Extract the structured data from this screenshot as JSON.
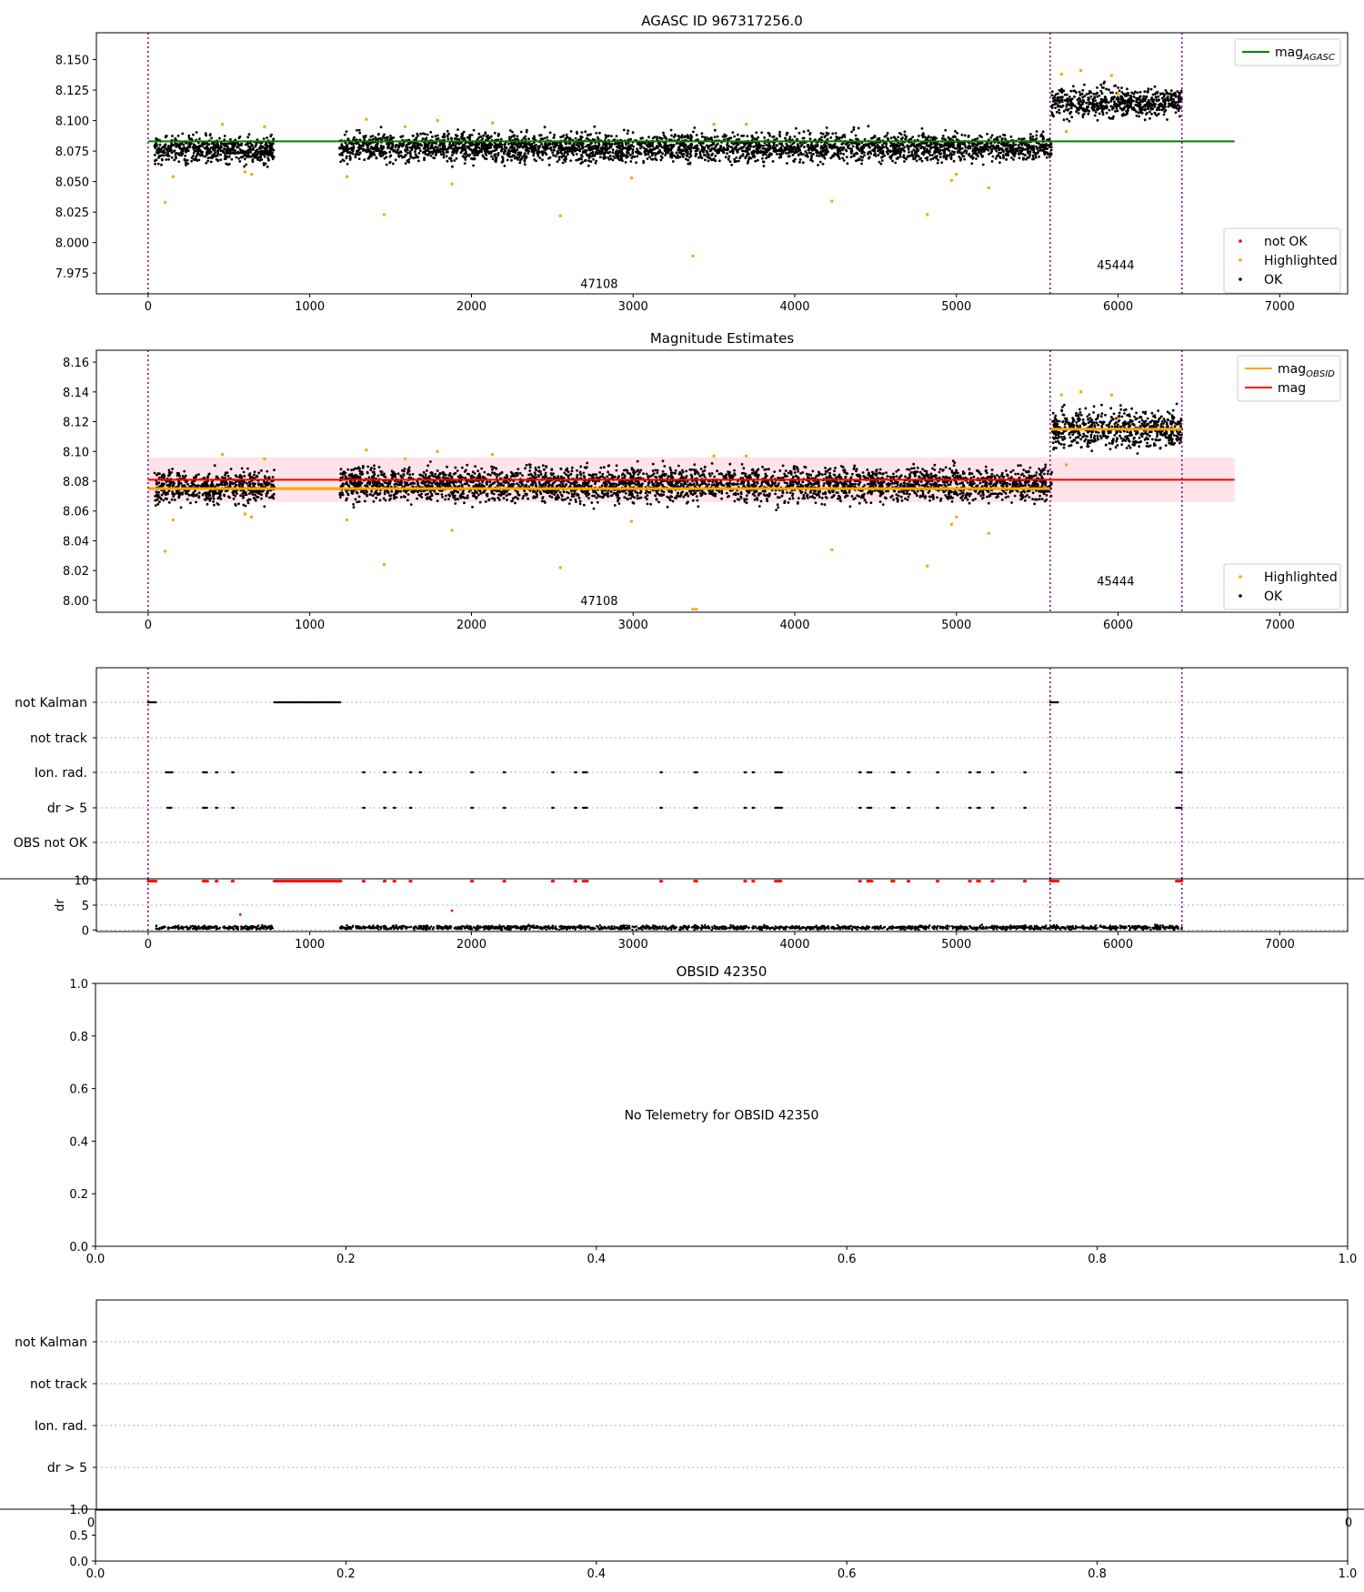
{
  "colors": {
    "ok": "#000000",
    "highlighted": "#ffa500",
    "not_ok": "#ff0000",
    "mag_agasc": "#008000",
    "mag_obsid": "#ffa500",
    "mag": "#ff0000",
    "mag_band": "#ffc0cb",
    "obs_boundary": "#800080",
    "grid": "#b0b0b0"
  },
  "chart_data": [
    {
      "type": "scatter",
      "title": "AGASC ID 967317256.0",
      "xlim": [
        -320,
        7420
      ],
      "ylim": [
        7.958,
        8.172
      ],
      "xticks": [
        0,
        1000,
        2000,
        3000,
        4000,
        5000,
        6000,
        7000
      ],
      "xtick_labels": [
        "0",
        "1000",
        "2000",
        "3000",
        "4000",
        "5000",
        "6000",
        "7000"
      ],
      "yticks": [
        7.975,
        8.0,
        8.025,
        8.05,
        8.075,
        8.1,
        8.125,
        8.15
      ],
      "ytick_labels": [
        "7.975",
        "8.000",
        "8.025",
        "8.050",
        "8.075",
        "8.100",
        "8.125",
        "8.150"
      ],
      "obs_boundaries": [
        0,
        5580,
        6395
      ],
      "obsid_labels": [
        {
          "text": "47108",
          "x": 2790,
          "y": 7.963
        },
        {
          "text": "45444",
          "x": 5985,
          "y": 7.978
        }
      ],
      "lines": [
        {
          "name": "mag_AGASC",
          "label": "mag",
          "sub": "AGASC",
          "x": [
            0,
            6720
          ],
          "y": [
            8.083,
            8.083
          ]
        }
      ],
      "segments": [
        {
          "x_range": [
            40,
            780
          ],
          "mean": 8.076,
          "sd": 0.0055
        },
        {
          "x_range": [
            1185,
            5590
          ],
          "mean": 8.078,
          "sd": 0.0058
        },
        {
          "x_range": [
            5590,
            6395
          ],
          "mean": 8.115,
          "sd": 0.006
        }
      ],
      "highlighted": [
        [
          105,
          8.033
        ],
        [
          155,
          8.054
        ],
        [
          460,
          8.097
        ],
        [
          600,
          8.058
        ],
        [
          640,
          8.056
        ],
        [
          720,
          8.095
        ],
        [
          1230,
          8.054
        ],
        [
          1350,
          8.101
        ],
        [
          1460,
          8.023
        ],
        [
          1590,
          8.095
        ],
        [
          1790,
          8.1
        ],
        [
          1880,
          8.048
        ],
        [
          2130,
          8.098
        ],
        [
          2550,
          8.022
        ],
        [
          2990,
          8.053
        ],
        [
          3370,
          7.989
        ],
        [
          3500,
          8.097
        ],
        [
          3700,
          8.097
        ],
        [
          4230,
          8.034
        ],
        [
          4820,
          8.023
        ],
        [
          4970,
          8.051
        ],
        [
          5000,
          8.056
        ],
        [
          5200,
          8.045
        ],
        [
          5650,
          8.138
        ],
        [
          5680,
          8.091
        ],
        [
          5770,
          8.141
        ],
        [
          5960,
          8.137
        ],
        [
          6000,
          8.122
        ]
      ],
      "legends": [
        {
          "position": "upper-right",
          "entries": [
            {
              "label": "mag",
              "sub": "AGASC",
              "kind": "line",
              "color": "#008000"
            }
          ]
        },
        {
          "position": "lower-right",
          "entries": [
            {
              "label": "not OK",
              "kind": "dot",
              "color": "#ff0000"
            },
            {
              "label": "Highlighted",
              "kind": "dot",
              "color": "#ffa500"
            },
            {
              "label": "OK",
              "kind": "dot",
              "color": "#000000"
            }
          ]
        }
      ]
    },
    {
      "type": "scatter",
      "title": "Magnitude Estimates",
      "xlim": [
        -320,
        7420
      ],
      "ylim": [
        7.992,
        8.168
      ],
      "xticks": [
        0,
        1000,
        2000,
        3000,
        4000,
        5000,
        6000,
        7000
      ],
      "xtick_labels": [
        "0",
        "1000",
        "2000",
        "3000",
        "4000",
        "5000",
        "6000",
        "7000"
      ],
      "yticks": [
        8.0,
        8.02,
        8.04,
        8.06,
        8.08,
        8.1,
        8.12,
        8.14,
        8.16
      ],
      "ytick_labels": [
        "8.00",
        "8.02",
        "8.04",
        "8.06",
        "8.08",
        "8.10",
        "8.12",
        "8.14",
        "8.16"
      ],
      "obs_boundaries": [
        0,
        5580,
        6395
      ],
      "obsid_labels": [
        {
          "text": "47108",
          "x": 2790,
          "y": 7.997
        },
        {
          "text": "45444",
          "x": 5985,
          "y": 8.01
        }
      ],
      "band": {
        "x": [
          0,
          6720
        ],
        "y": [
          8.066,
          8.096
        ]
      },
      "lines": [
        {
          "name": "mag",
          "label": "mag",
          "x": [
            0,
            6720
          ],
          "y": [
            8.081,
            8.081
          ]
        },
        {
          "name": "mag_OBSID_1",
          "label": "mag",
          "sub": "OBSID",
          "x": [
            0,
            5580
          ],
          "y": [
            8.075,
            8.075
          ]
        },
        {
          "name": "mag_OBSID_2",
          "label": "mag",
          "sub": "OBSID",
          "x": [
            5580,
            6395
          ],
          "y": [
            8.115,
            8.115
          ]
        }
      ],
      "segments": [
        {
          "x_range": [
            40,
            780
          ],
          "mean": 8.076,
          "sd": 0.0055
        },
        {
          "x_range": [
            1185,
            5590
          ],
          "mean": 8.078,
          "sd": 0.0058
        },
        {
          "x_range": [
            5590,
            6395
          ],
          "mean": 8.115,
          "sd": 0.006
        }
      ],
      "highlighted": [
        [
          105,
          8.033
        ],
        [
          155,
          8.054
        ],
        [
          460,
          8.098
        ],
        [
          600,
          8.058
        ],
        [
          640,
          8.056
        ],
        [
          720,
          8.095
        ],
        [
          1230,
          8.054
        ],
        [
          1350,
          8.101
        ],
        [
          1460,
          8.024
        ],
        [
          1590,
          8.095
        ],
        [
          1790,
          8.1
        ],
        [
          1880,
          8.047
        ],
        [
          2130,
          8.098
        ],
        [
          2550,
          8.022
        ],
        [
          2990,
          8.053
        ],
        [
          3370,
          7.994
        ],
        [
          3390,
          7.994
        ],
        [
          3500,
          8.097
        ],
        [
          3700,
          8.097
        ],
        [
          4230,
          8.034
        ],
        [
          4820,
          8.023
        ],
        [
          4970,
          8.051
        ],
        [
          5000,
          8.056
        ],
        [
          5200,
          8.045
        ],
        [
          5650,
          8.138
        ],
        [
          5680,
          8.091
        ],
        [
          5770,
          8.14
        ],
        [
          5960,
          8.138
        ],
        [
          6000,
          8.122
        ]
      ],
      "legends": [
        {
          "position": "upper-right",
          "entries": [
            {
              "label": "mag",
              "sub": "OBSID",
              "kind": "line",
              "color": "#ffa500"
            },
            {
              "label": "mag",
              "kind": "line",
              "color": "#ff0000"
            }
          ]
        },
        {
          "position": "lower-right",
          "entries": [
            {
              "label": "Highlighted",
              "kind": "dot",
              "color": "#ffa500"
            },
            {
              "label": "OK",
              "kind": "dot",
              "color": "#000000"
            }
          ]
        }
      ]
    },
    {
      "type": "scatter",
      "title": "",
      "xlim": [
        -320,
        7420
      ],
      "categories": [
        "not Kalman",
        "not track",
        "Ion. rad.",
        "dr > 5",
        "OBS not OK"
      ],
      "flag_ranges": {
        "not Kalman": [
          [
            0,
            50
          ],
          [
            780,
            1195
          ],
          [
            5580,
            5630
          ]
        ],
        "not track": [],
        "Ion. rad.": [
          [
            110,
            150
          ],
          [
            340,
            370
          ],
          [
            420,
            430
          ],
          [
            520,
            530
          ],
          [
            1330,
            1340
          ],
          [
            1460,
            1470
          ],
          [
            1520,
            1530
          ],
          [
            1620,
            1630
          ],
          [
            1680,
            1690
          ],
          [
            2000,
            2010
          ],
          [
            2200,
            2210
          ],
          [
            2500,
            2510
          ],
          [
            2640,
            2650
          ],
          [
            2690,
            2720
          ],
          [
            3170,
            3180
          ],
          [
            3380,
            3400
          ],
          [
            3690,
            3700
          ],
          [
            3740,
            3750
          ],
          [
            3880,
            3920
          ],
          [
            4400,
            4410
          ],
          [
            4450,
            4480
          ],
          [
            4600,
            4620
          ],
          [
            4700,
            4710
          ],
          [
            4880,
            4890
          ],
          [
            5080,
            5090
          ],
          [
            5130,
            5150
          ],
          [
            5220,
            5230
          ],
          [
            5420,
            5430
          ],
          [
            6360,
            6395
          ]
        ],
        "dr > 5": [
          [
            120,
            150
          ],
          [
            340,
            370
          ],
          [
            420,
            430
          ],
          [
            520,
            530
          ],
          [
            1330,
            1340
          ],
          [
            1460,
            1470
          ],
          [
            1520,
            1530
          ],
          [
            1620,
            1630
          ],
          [
            2000,
            2010
          ],
          [
            2200,
            2210
          ],
          [
            2500,
            2510
          ],
          [
            2640,
            2650
          ],
          [
            2690,
            2720
          ],
          [
            3170,
            3180
          ],
          [
            3380,
            3400
          ],
          [
            3690,
            3700
          ],
          [
            3740,
            3750
          ],
          [
            3880,
            3920
          ],
          [
            4400,
            4410
          ],
          [
            4450,
            4480
          ],
          [
            4600,
            4620
          ],
          [
            4700,
            4710
          ],
          [
            4880,
            4890
          ],
          [
            5080,
            5090
          ],
          [
            5130,
            5150
          ],
          [
            5220,
            5230
          ],
          [
            5420,
            5430
          ],
          [
            6360,
            6395
          ]
        ],
        "OBS not OK": []
      },
      "obs_boundaries": [
        0,
        5580,
        6395
      ]
    },
    {
      "type": "scatter",
      "title": "",
      "xlim": [
        -320,
        7420
      ],
      "ylim": [
        -0.3,
        10.3
      ],
      "ylabel": "dr",
      "yticks": [
        0,
        5,
        10
      ],
      "ytick_labels": [
        "0",
        "5",
        "10"
      ],
      "xticks": [
        0,
        1000,
        2000,
        3000,
        4000,
        5000,
        6000,
        7000
      ],
      "xtick_labels": [
        "0",
        "1000",
        "2000",
        "3000",
        "4000",
        "5000",
        "6000",
        "7000"
      ],
      "segments": [
        {
          "x_range": [
            40,
            780
          ],
          "mean": 0.5,
          "sd": 0.2
        },
        {
          "x_range": [
            1185,
            5590
          ],
          "mean": 0.5,
          "sd": 0.2
        },
        {
          "x_range": [
            5590,
            6395
          ],
          "mean": 0.5,
          "sd": 0.2
        }
      ],
      "red_points": [
        [
          570,
          3.1
        ],
        [
          1880,
          3.9
        ]
      ],
      "red_at_10_ranges": [
        [
          0,
          50
        ],
        [
          340,
          370
        ],
        [
          420,
          430
        ],
        [
          520,
          530
        ],
        [
          780,
          1195
        ],
        [
          1330,
          1340
        ],
        [
          1460,
          1470
        ],
        [
          1520,
          1530
        ],
        [
          1620,
          1630
        ],
        [
          2000,
          2010
        ],
        [
          2200,
          2210
        ],
        [
          2500,
          2510
        ],
        [
          2640,
          2650
        ],
        [
          2690,
          2720
        ],
        [
          3170,
          3180
        ],
        [
          3380,
          3400
        ],
        [
          3690,
          3700
        ],
        [
          3740,
          3750
        ],
        [
          3880,
          3920
        ],
        [
          4400,
          4410
        ],
        [
          4450,
          4480
        ],
        [
          4600,
          4620
        ],
        [
          4700,
          4710
        ],
        [
          4880,
          4890
        ],
        [
          5080,
          5090
        ],
        [
          5130,
          5150
        ],
        [
          5220,
          5230
        ],
        [
          5420,
          5430
        ],
        [
          5580,
          5630
        ],
        [
          6360,
          6395
        ]
      ],
      "obs_boundaries": [
        0,
        5580,
        6395
      ]
    },
    {
      "type": "scatter",
      "title": "OBSID 42350",
      "xlim": [
        0,
        1
      ],
      "ylim": [
        0,
        1
      ],
      "xticks": [
        0,
        0.2,
        0.4,
        0.6,
        0.8,
        1.0
      ],
      "xtick_labels": [
        "0.0",
        "0.2",
        "0.4",
        "0.6",
        "0.8",
        "1.0"
      ],
      "yticks": [
        0,
        0.2,
        0.4,
        0.6,
        0.8,
        1.0
      ],
      "ytick_labels": [
        "0.0",
        "0.2",
        "0.4",
        "0.6",
        "0.8",
        "1.0"
      ],
      "annotation": "No Telemetry for OBSID 42350"
    },
    {
      "type": "scatter",
      "title": "",
      "categories": [
        "not Kalman",
        "not track",
        "Ion. rad.",
        "dr > 5"
      ],
      "stray_tick_labels": [
        "0",
        "0"
      ]
    },
    {
      "type": "scatter",
      "title": "",
      "xlim": [
        0,
        1
      ],
      "ylim": [
        0,
        1
      ],
      "yticks": [
        0,
        0.5,
        1.0
      ],
      "ytick_labels": [
        "0.0",
        "0.5",
        "1.0"
      ],
      "xticks": [
        0,
        0.2,
        0.4,
        0.6,
        0.8,
        1.0
      ],
      "xtick_labels": [
        "0.0",
        "0.2",
        "0.4",
        "0.6",
        "0.8",
        "1.0"
      ]
    }
  ]
}
